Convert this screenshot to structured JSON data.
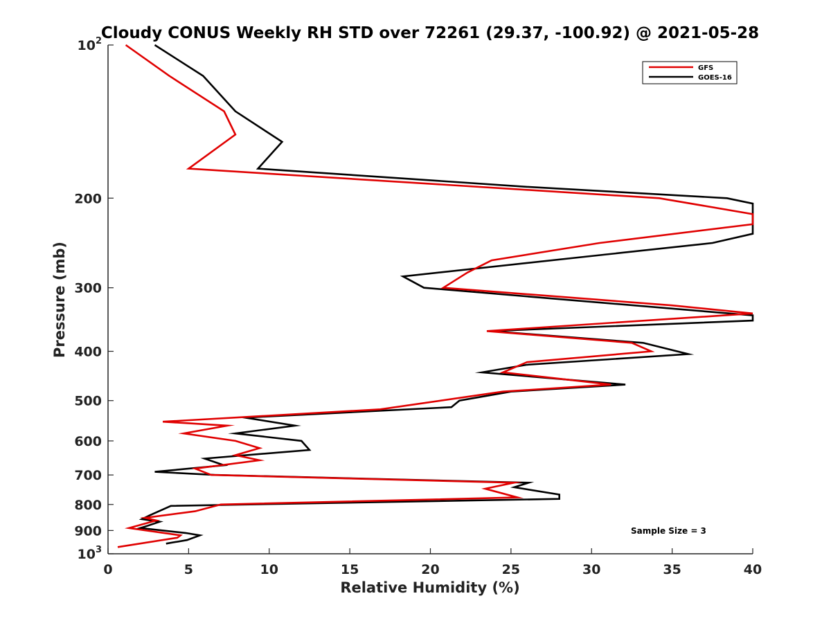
{
  "chart_data": {
    "type": "line",
    "title": "Cloudy CONUS Weekly RH STD over 72261 (29.37, -100.92) @ 2021-05-28",
    "xlabel": "Relative Humidity (%)",
    "ylabel": "Pressure (mb)",
    "xlim": [
      0,
      40
    ],
    "ylim": [
      100,
      1000
    ],
    "yscale": "log",
    "y_reversed": true,
    "grid": false,
    "legend_position": "top-right",
    "x_ticks": [
      "0",
      "5",
      "10",
      "15",
      "20",
      "25",
      "30",
      "35",
      "40"
    ],
    "y_ticks": [
      {
        "value": 100,
        "base": "10",
        "exp": "2"
      },
      {
        "value": 200,
        "label": "200"
      },
      {
        "value": 300,
        "label": "300"
      },
      {
        "value": 400,
        "label": "400"
      },
      {
        "value": 500,
        "label": "500"
      },
      {
        "value": 600,
        "label": "600"
      },
      {
        "value": 700,
        "label": "700"
      },
      {
        "value": 800,
        "label": "800"
      },
      {
        "value": 900,
        "label": "900"
      },
      {
        "value": 1000,
        "base": "10",
        "exp": "3"
      }
    ],
    "annotation": "Sample Size = 3",
    "series": [
      {
        "name": "GFS",
        "color": "#e00000",
        "points": [
          [
            1.1,
            100
          ],
          [
            3.8,
            115
          ],
          [
            7.2,
            135
          ],
          [
            7.9,
            150
          ],
          [
            5.0,
            175
          ],
          [
            34.2,
            200
          ],
          [
            40,
            215
          ],
          [
            40,
            225
          ],
          [
            30.5,
            245
          ],
          [
            23.8,
            265
          ],
          [
            22.3,
            280
          ],
          [
            20.8,
            300
          ],
          [
            35,
            325
          ],
          [
            40,
            337
          ],
          [
            23.5,
            365
          ],
          [
            32.5,
            385
          ],
          [
            33.7,
            400
          ],
          [
            26,
            420
          ],
          [
            24.5,
            440
          ],
          [
            31.2,
            465
          ],
          [
            24.5,
            480
          ],
          [
            16.9,
            520
          ],
          [
            3.4,
            550
          ],
          [
            7.4,
            560
          ],
          [
            4.7,
            580
          ],
          [
            7.9,
            600
          ],
          [
            9.4,
            620
          ],
          [
            7.9,
            640
          ],
          [
            9.4,
            655
          ],
          [
            5.4,
            680
          ],
          [
            6.4,
            700
          ],
          [
            25.2,
            725
          ],
          [
            23.4,
            745
          ],
          [
            25.4,
            775
          ],
          [
            7.0,
            800
          ],
          [
            5.4,
            825
          ],
          [
            2.3,
            850
          ],
          [
            3.0,
            860
          ],
          [
            1.3,
            890
          ],
          [
            4.5,
            920
          ],
          [
            4.3,
            930
          ],
          [
            0.6,
            970
          ]
        ]
      },
      {
        "name": "GOES-16",
        "color": "#000000",
        "points": [
          [
            2.9,
            100
          ],
          [
            5.9,
            115
          ],
          [
            7.9,
            135
          ],
          [
            10.8,
            155
          ],
          [
            9.3,
            175
          ],
          [
            26,
            190
          ],
          [
            38.4,
            200
          ],
          [
            40,
            205
          ],
          [
            40,
            235
          ],
          [
            37.5,
            245
          ],
          [
            18.3,
            285
          ],
          [
            19.6,
            300
          ],
          [
            40,
            340
          ],
          [
            40,
            348
          ],
          [
            23.7,
            365
          ],
          [
            33.2,
            385
          ],
          [
            36,
            405
          ],
          [
            26,
            425
          ],
          [
            23.2,
            440
          ],
          [
            32.1,
            465
          ],
          [
            25,
            480
          ],
          [
            21.8,
            500
          ],
          [
            21.3,
            515
          ],
          [
            8.5,
            540
          ],
          [
            11.6,
            560
          ],
          [
            7.9,
            580
          ],
          [
            12.0,
            600
          ],
          [
            12.5,
            625
          ],
          [
            6.0,
            650
          ],
          [
            7.2,
            670
          ],
          [
            2.9,
            690
          ],
          [
            6.6,
            700
          ],
          [
            26.1,
            725
          ],
          [
            25.2,
            740
          ],
          [
            28,
            765
          ],
          [
            28,
            780
          ],
          [
            3.9,
            805
          ],
          [
            2.6,
            840
          ],
          [
            2.1,
            855
          ],
          [
            3.2,
            865
          ],
          [
            2.5,
            880
          ],
          [
            2.0,
            890
          ],
          [
            4.8,
            910
          ],
          [
            5.7,
            920
          ],
          [
            4.9,
            940
          ],
          [
            3.6,
            955
          ]
        ]
      }
    ]
  }
}
